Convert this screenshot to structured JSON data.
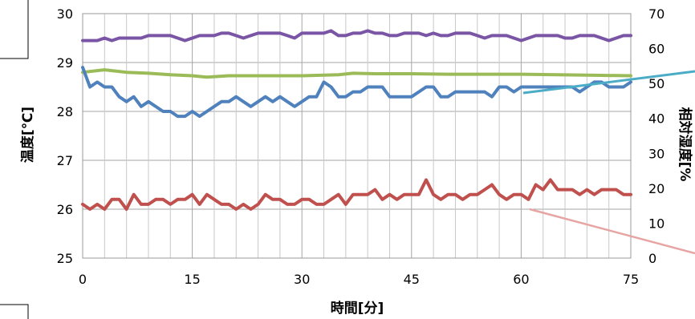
{
  "chart_data": {
    "type": "line",
    "xlabel": "時間[分]",
    "ylabel": "温度[℃]",
    "y2label": "相対湿度[%",
    "xlim": [
      0,
      75
    ],
    "ylim": [
      25,
      30
    ],
    "y2lim": [
      0,
      70
    ],
    "x_ticks": [
      "0",
      "15",
      "30",
      "45",
      "60",
      "75"
    ],
    "y_ticks": [
      "25",
      "26",
      "27",
      "28",
      "29",
      "30"
    ],
    "y2_ticks": [
      "0",
      "10",
      "20",
      "30",
      "40",
      "50",
      "60",
      "70"
    ],
    "grid": true,
    "legend": "none",
    "series": [
      {
        "color": "#7a55a5",
        "axis": "left",
        "x": [
          0,
          1,
          2,
          3,
          4,
          5,
          6,
          7,
          8,
          9,
          10,
          11,
          12,
          13,
          14,
          15,
          16,
          17,
          18,
          19,
          20,
          21,
          22,
          23,
          24,
          25,
          26,
          27,
          28,
          29,
          30,
          31,
          32,
          33,
          34,
          35,
          36,
          37,
          38,
          39,
          40,
          41,
          42,
          43,
          44,
          45,
          46,
          47,
          48,
          49,
          50,
          51,
          52,
          53,
          54,
          55,
          56,
          57,
          58,
          59,
          60,
          61,
          62,
          63,
          64,
          65,
          66,
          67,
          68,
          69,
          70,
          71,
          72,
          73,
          74,
          75
        ],
        "y": [
          29.45,
          29.45,
          29.45,
          29.5,
          29.45,
          29.5,
          29.5,
          29.5,
          29.5,
          29.55,
          29.55,
          29.55,
          29.55,
          29.5,
          29.45,
          29.5,
          29.55,
          29.55,
          29.55,
          29.6,
          29.6,
          29.55,
          29.5,
          29.55,
          29.6,
          29.6,
          29.6,
          29.6,
          29.55,
          29.5,
          29.6,
          29.6,
          29.6,
          29.6,
          29.65,
          29.55,
          29.55,
          29.6,
          29.6,
          29.65,
          29.6,
          29.6,
          29.55,
          29.55,
          29.6,
          29.6,
          29.6,
          29.55,
          29.6,
          29.55,
          29.55,
          29.6,
          29.6,
          29.6,
          29.55,
          29.5,
          29.55,
          29.55,
          29.55,
          29.5,
          29.45,
          29.5,
          29.55,
          29.55,
          29.55,
          29.55,
          29.5,
          29.5,
          29.55,
          29.55,
          29.55,
          29.5,
          29.45,
          29.5,
          29.55,
          29.55
        ]
      },
      {
        "color": "#9bbb59",
        "axis": "left",
        "x": [
          0,
          3,
          6,
          9,
          12,
          15,
          17,
          20,
          25,
          30,
          35,
          37,
          40,
          45,
          50,
          55,
          60,
          65,
          70,
          75
        ],
        "y": [
          28.8,
          28.85,
          28.8,
          28.78,
          28.75,
          28.73,
          28.7,
          28.73,
          28.73,
          28.73,
          28.75,
          28.78,
          28.77,
          28.77,
          28.76,
          28.76,
          28.76,
          28.75,
          28.74,
          28.73
        ]
      },
      {
        "color": "#4f81bd",
        "axis": "left",
        "x": [
          0,
          1,
          2,
          3,
          4,
          5,
          6,
          7,
          8,
          9,
          10,
          11,
          12,
          13,
          14,
          15,
          16,
          17,
          18,
          19,
          20,
          21,
          22,
          23,
          24,
          25,
          26,
          27,
          28,
          29,
          30,
          31,
          32,
          33,
          34,
          35,
          36,
          37,
          38,
          39,
          40,
          41,
          42,
          43,
          44,
          45,
          46,
          47,
          48,
          49,
          50,
          51,
          52,
          53,
          54,
          55,
          56,
          57,
          58,
          59,
          60,
          61,
          62,
          63,
          64,
          65,
          66,
          67,
          68,
          69,
          70,
          71,
          72,
          73,
          74,
          75
        ],
        "y": [
          28.9,
          28.5,
          28.6,
          28.5,
          28.5,
          28.3,
          28.2,
          28.3,
          28.1,
          28.2,
          28.1,
          28,
          28,
          27.9,
          27.9,
          28,
          27.9,
          28,
          28.1,
          28.2,
          28.2,
          28.3,
          28.2,
          28.1,
          28.2,
          28.3,
          28.2,
          28.3,
          28.2,
          28.1,
          28.2,
          28.3,
          28.3,
          28.6,
          28.5,
          28.3,
          28.3,
          28.4,
          28.4,
          28.5,
          28.5,
          28.5,
          28.3,
          28.3,
          28.3,
          28.3,
          28.4,
          28.5,
          28.5,
          28.3,
          28.3,
          28.4,
          28.4,
          28.4,
          28.4,
          28.4,
          28.3,
          28.5,
          28.5,
          28.4,
          28.5,
          28.5,
          28.5,
          28.5,
          28.5,
          28.5,
          28.5,
          28.5,
          28.4,
          28.5,
          28.6,
          28.6,
          28.5,
          28.5,
          28.5,
          28.6
        ]
      },
      {
        "color": "#c0504d",
        "axis": "left",
        "x": [
          0,
          1,
          2,
          3,
          4,
          5,
          6,
          7,
          8,
          9,
          10,
          11,
          12,
          13,
          14,
          15,
          16,
          17,
          18,
          19,
          20,
          21,
          22,
          23,
          24,
          25,
          26,
          27,
          28,
          29,
          30,
          31,
          32,
          33,
          34,
          35,
          36,
          37,
          38,
          39,
          40,
          41,
          42,
          43,
          44,
          45,
          46,
          47,
          48,
          49,
          50,
          51,
          52,
          53,
          54,
          55,
          56,
          57,
          58,
          59,
          60,
          61,
          62,
          63,
          64,
          65,
          66,
          67,
          68,
          69,
          70,
          71,
          72,
          73,
          74,
          75
        ],
        "y": [
          26.1,
          26,
          26.1,
          26,
          26.2,
          26.2,
          26,
          26.3,
          26.1,
          26.1,
          26.2,
          26.2,
          26.1,
          26.2,
          26.2,
          26.3,
          26.1,
          26.3,
          26.2,
          26.1,
          26.1,
          26,
          26.1,
          26,
          26.1,
          26.3,
          26.2,
          26.2,
          26.1,
          26.1,
          26.2,
          26.2,
          26.1,
          26.1,
          26.2,
          26.3,
          26.1,
          26.3,
          26.3,
          26.3,
          26.4,
          26.2,
          26.3,
          26.2,
          26.3,
          26.3,
          26.3,
          26.6,
          26.3,
          26.2,
          26.3,
          26.3,
          26.2,
          26.3,
          26.3,
          26.4,
          26.5,
          26.3,
          26.2,
          26.3,
          26.3,
          26.2,
          26.5,
          26.4,
          26.6,
          26.4,
          26.4,
          26.4,
          26.3,
          26.4,
          26.3,
          26.4,
          26.4,
          26.4,
          26.3,
          26.3
        ]
      }
    ]
  }
}
